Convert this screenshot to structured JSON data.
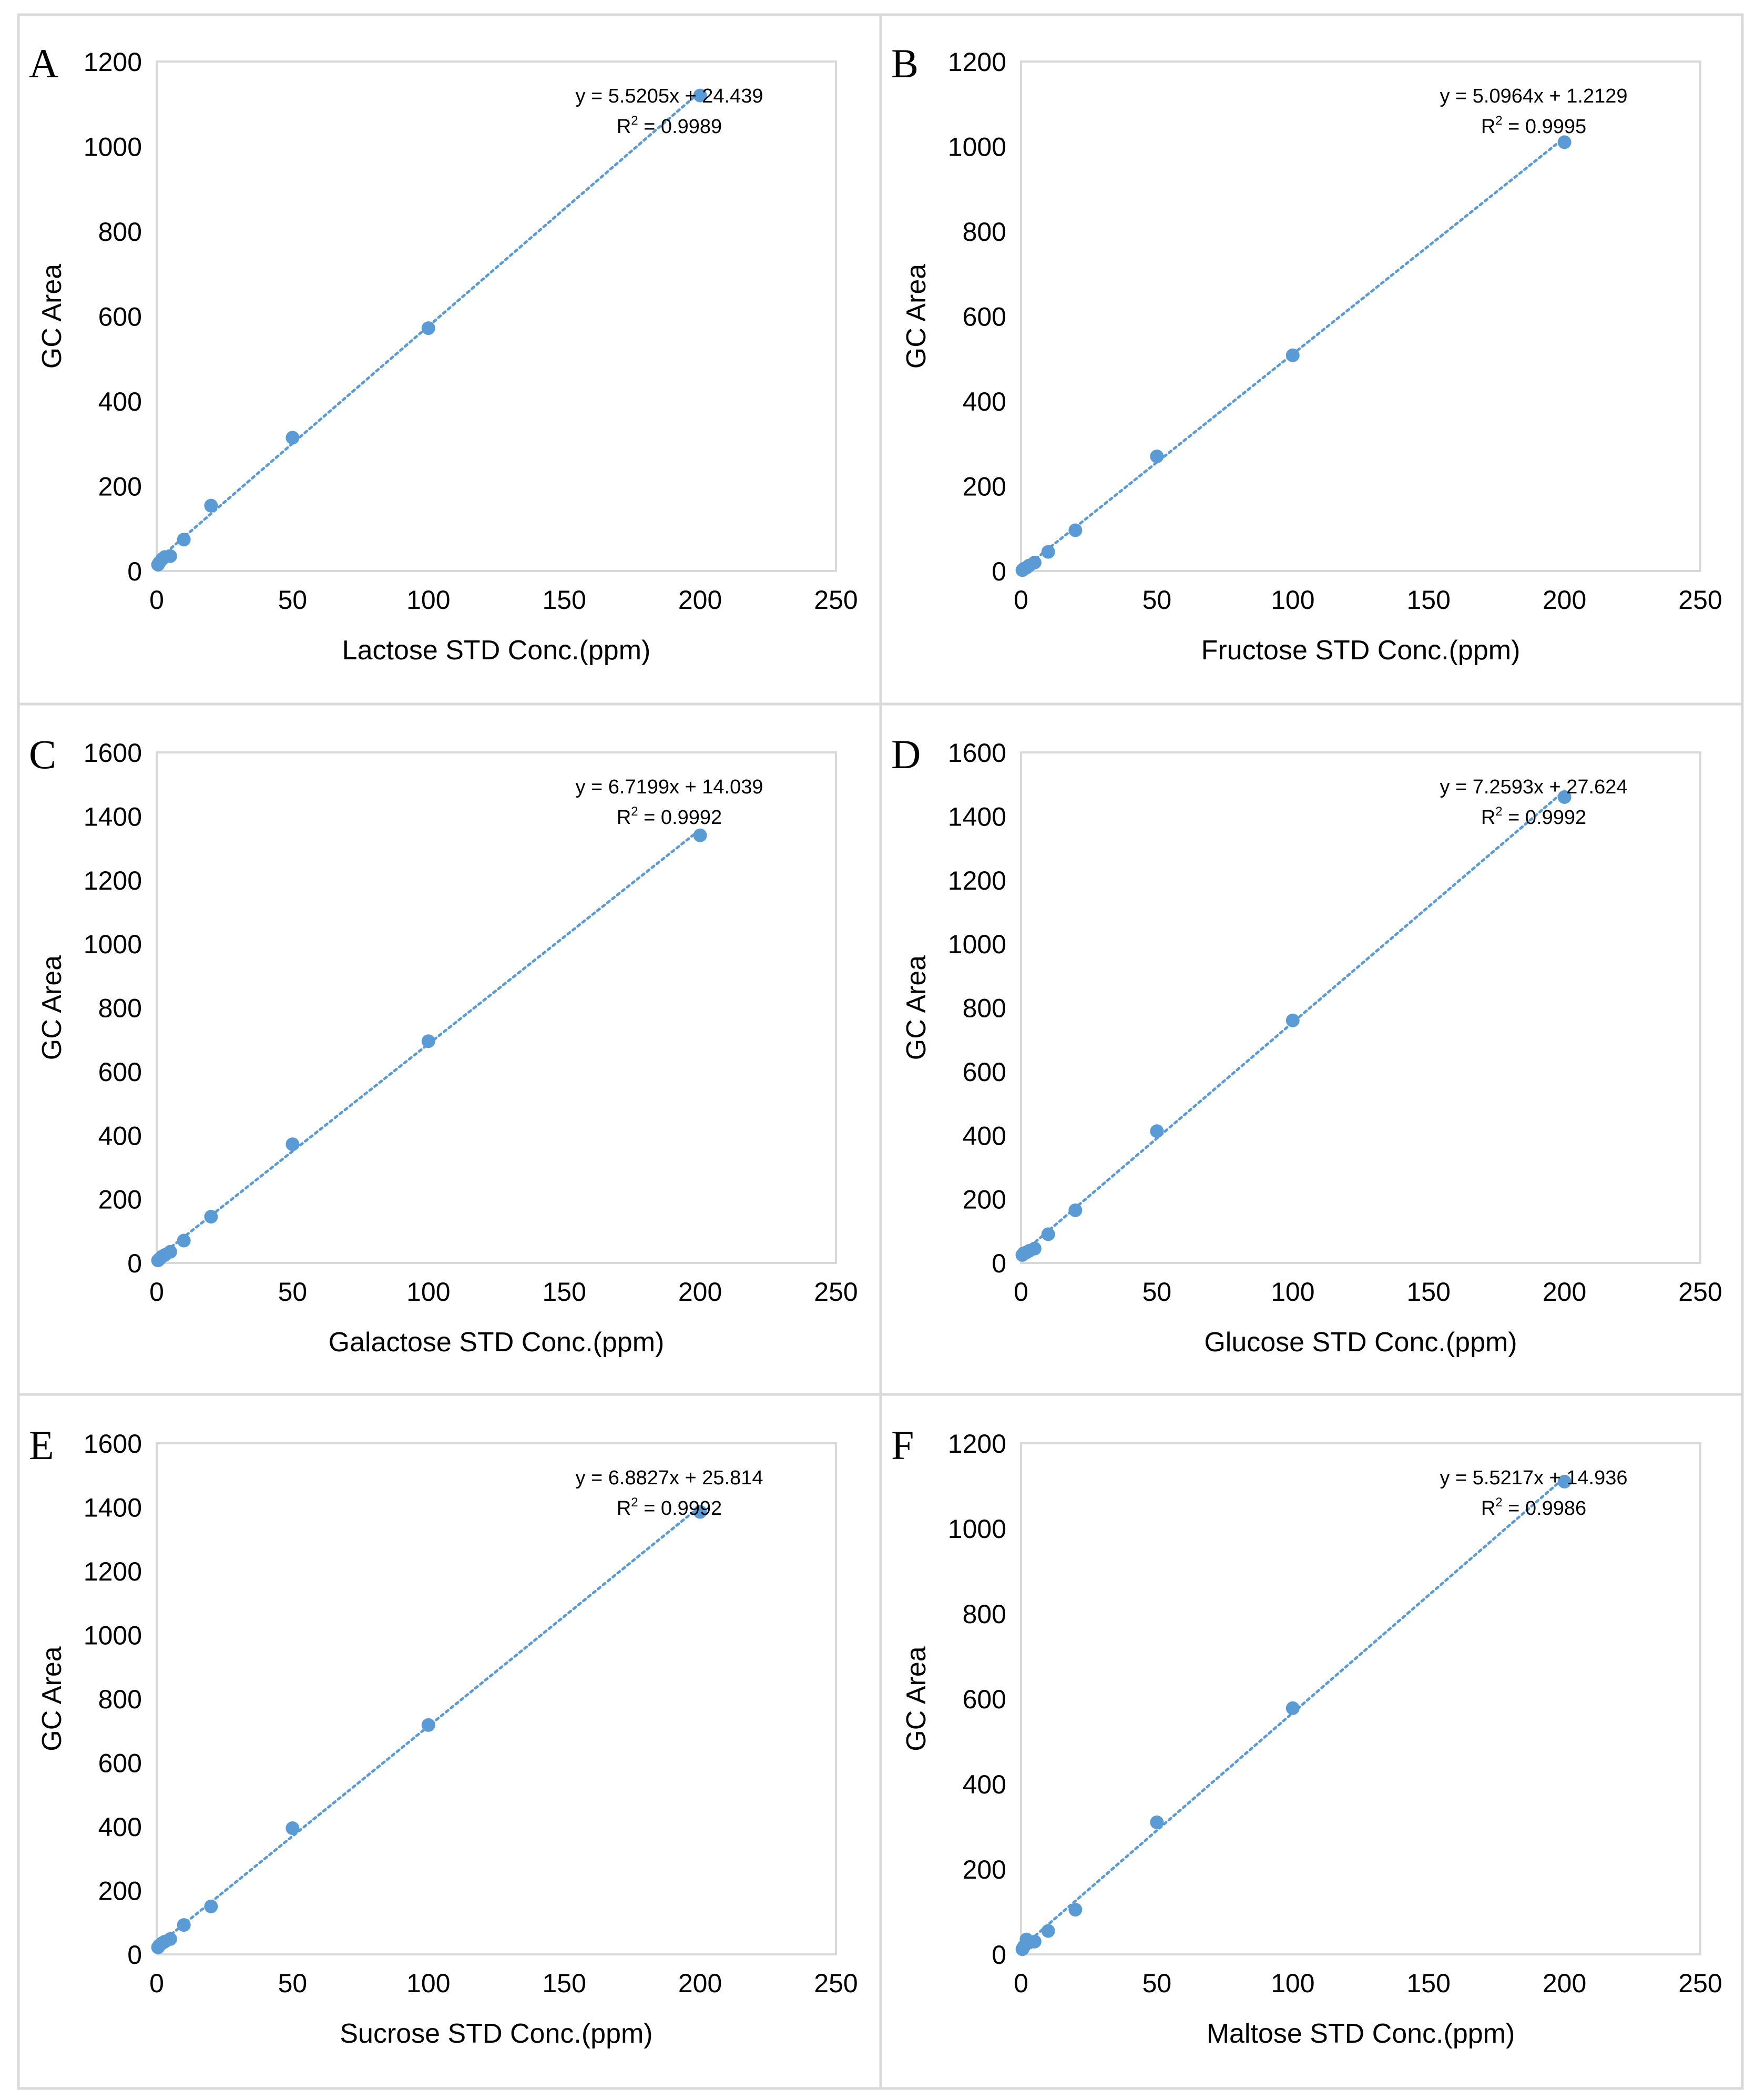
{
  "colors": {
    "marker": "#5b9bd5",
    "trendline": "#5b9bd5",
    "frame": "#d9d9d9",
    "cell_border": "#d9d9d9",
    "text": "#000000"
  },
  "chart_data": [
    {
      "type": "scatter",
      "panel": "A",
      "title": "",
      "xlabel": "Lactose STD Conc.(ppm)",
      "ylabel": "GC Area",
      "xlim": [
        0,
        250
      ],
      "ylim": [
        0,
        1200
      ],
      "xticks": [
        0,
        50,
        100,
        150,
        200,
        250
      ],
      "yticks": [
        0,
        200,
        400,
        600,
        800,
        1000,
        1200
      ],
      "x": [
        0.5,
        1,
        2,
        3,
        5,
        10,
        20,
        50,
        100,
        200
      ],
      "y": [
        15,
        20,
        28,
        33,
        35,
        74,
        154,
        314,
        572,
        1120
      ],
      "equation": "y = 5.5205x + 24.439",
      "r2_prefix": "R",
      "r2_sup": "2",
      "r2_value": " = 0.9989",
      "slope": 5.5205,
      "intercept": 24.439,
      "grid": false
    },
    {
      "type": "scatter",
      "panel": "B",
      "title": "",
      "xlabel": "Fructose STD Conc.(ppm)",
      "ylabel": "GC Area",
      "xlim": [
        0,
        250
      ],
      "ylim": [
        0,
        1200
      ],
      "xticks": [
        0,
        50,
        100,
        150,
        200,
        250
      ],
      "yticks": [
        0,
        200,
        400,
        600,
        800,
        1000,
        1200
      ],
      "x": [
        0.5,
        1,
        2,
        3,
        5,
        10,
        20,
        50,
        100,
        200
      ],
      "y": [
        2,
        5,
        8,
        13,
        20,
        45,
        96,
        270,
        508,
        1010
      ],
      "equation": "y = 5.0964x + 1.2129",
      "r2_prefix": "R",
      "r2_sup": "2",
      "r2_value": " = 0.9995",
      "slope": 5.0964,
      "intercept": 1.2129,
      "grid": false
    },
    {
      "type": "scatter",
      "panel": "C",
      "title": "",
      "xlabel": "Galactose STD Conc.(ppm)",
      "ylabel": "GC Area",
      "xlim": [
        0,
        250
      ],
      "ylim": [
        0,
        1600
      ],
      "xticks": [
        0,
        50,
        100,
        150,
        200,
        250
      ],
      "yticks": [
        0,
        200,
        400,
        600,
        800,
        1000,
        1200,
        1400,
        1600
      ],
      "x": [
        0.5,
        1,
        2,
        3,
        5,
        10,
        20,
        50,
        100,
        200
      ],
      "y": [
        8,
        12,
        20,
        25,
        35,
        70,
        145,
        372,
        695,
        1340
      ],
      "equation": "y = 6.7199x + 14.039",
      "r2_prefix": "R",
      "r2_sup": "2",
      "r2_value": " = 0.9992",
      "slope": 6.7199,
      "intercept": 14.039,
      "grid": false
    },
    {
      "type": "scatter",
      "panel": "D",
      "title": "",
      "xlabel": "Glucose STD Conc.(ppm)",
      "ylabel": "GC Area",
      "xlim": [
        0,
        250
      ],
      "ylim": [
        0,
        1600
      ],
      "xticks": [
        0,
        50,
        100,
        150,
        200,
        250
      ],
      "yticks": [
        0,
        200,
        400,
        600,
        800,
        1000,
        1200,
        1400,
        1600
      ],
      "x": [
        0.5,
        1,
        2,
        3,
        5,
        10,
        20,
        50,
        100,
        200
      ],
      "y": [
        25,
        30,
        33,
        38,
        45,
        90,
        165,
        413,
        760,
        1460
      ],
      "equation": "y = 7.2593x + 27.624",
      "r2_prefix": "R",
      "r2_sup": "2",
      "r2_value": " = 0.9992",
      "slope": 7.2593,
      "intercept": 27.624,
      "grid": false
    },
    {
      "type": "scatter",
      "panel": "E",
      "title": "",
      "xlabel": "Sucrose STD Conc.(ppm)",
      "ylabel": "GC Area",
      "xlim": [
        0,
        250
      ],
      "ylim": [
        0,
        1600
      ],
      "xticks": [
        0,
        50,
        100,
        150,
        200,
        250
      ],
      "yticks": [
        0,
        200,
        400,
        600,
        800,
        1000,
        1200,
        1400,
        1600
      ],
      "x": [
        0.5,
        1,
        2,
        3,
        5,
        10,
        20,
        50,
        100,
        200
      ],
      "y": [
        22,
        28,
        35,
        40,
        48,
        92,
        150,
        395,
        718,
        1385
      ],
      "equation": "y = 6.8827x + 25.814",
      "r2_prefix": "R",
      "r2_sup": "2",
      "r2_value": " = 0.9992",
      "slope": 6.8827,
      "intercept": 25.814,
      "grid": false
    },
    {
      "type": "scatter",
      "panel": "F",
      "title": "",
      "xlabel": "Maltose STD Conc.(ppm)",
      "ylabel": "GC Area",
      "xlim": [
        0,
        250
      ],
      "ylim": [
        0,
        1200
      ],
      "xticks": [
        0,
        50,
        100,
        150,
        200,
        250
      ],
      "yticks": [
        0,
        200,
        400,
        600,
        800,
        1000,
        1200
      ],
      "x": [
        0.5,
        1,
        2,
        3,
        5,
        10,
        20,
        50,
        100,
        200
      ],
      "y": [
        12,
        18,
        35,
        28,
        30,
        55,
        105,
        310,
        578,
        1110
      ],
      "equation": "y = 5.5217x + 14.936",
      "r2_prefix": "R",
      "r2_sup": "2",
      "r2_value": " = 0.9986",
      "slope": 5.5217,
      "intercept": 14.936,
      "grid": false
    }
  ]
}
